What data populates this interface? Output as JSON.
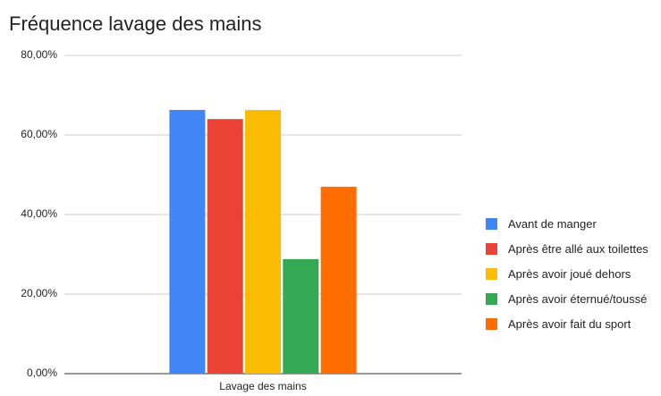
{
  "chart_data": {
    "type": "bar",
    "title": "Fréquence lavage des mains",
    "categories": [
      "Lavage des mains"
    ],
    "series": [
      {
        "name": "Avant de manger",
        "color": "#4285f4",
        "values": [
          66.3
        ]
      },
      {
        "name": "Après être allé aux toilettes",
        "color": "#ea4335",
        "values": [
          64.0
        ]
      },
      {
        "name": "Après avoir joué dehors",
        "color": "#fbbc04",
        "values": [
          66.3
        ]
      },
      {
        "name": "Après avoir éternué/toussé",
        "color": "#34a853",
        "values": [
          28.8
        ]
      },
      {
        "name": "Après avoir fait du sport",
        "color": "#ff6d01",
        "values": [
          47.0
        ]
      }
    ],
    "ylim": [
      0,
      80
    ],
    "yticks": [
      {
        "value": 0,
        "label": "0,00%"
      },
      {
        "value": 20,
        "label": "20,00%"
      },
      {
        "value": 40,
        "label": "40,00%"
      },
      {
        "value": 60,
        "label": "60,00%"
      },
      {
        "value": 80,
        "label": "80,00%"
      }
    ],
    "grid": true,
    "legend": "right"
  }
}
